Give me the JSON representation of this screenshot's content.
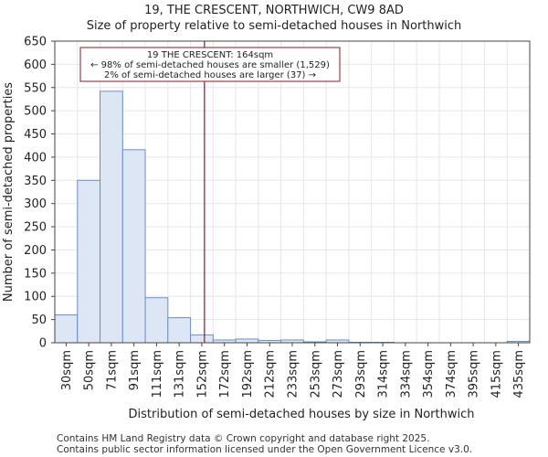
{
  "header": {
    "title": "19, THE CRESCENT, NORTHWICH, CW9 8AD",
    "subtitle": "Size of property relative to semi-detached houses in Northwich"
  },
  "footer": {
    "line1": "Contains HM Land Registry data © Crown copyright and database right 2025.",
    "line2": "Contains public sector information licensed under the Open Government Licence v3.0."
  },
  "chart_data": {
    "type": "bar",
    "title": "Size of property relative to semi-detached houses in Northwich",
    "xlabel": "Distribution of semi-detached houses by size in Northwich",
    "ylabel": "Number of semi-detached properties",
    "categories": [
      "30sqm",
      "50sqm",
      "71sqm",
      "91sqm",
      "111sqm",
      "131sqm",
      "152sqm",
      "172sqm",
      "192sqm",
      "212sqm",
      "233sqm",
      "253sqm",
      "273sqm",
      "293sqm",
      "314sqm",
      "334sqm",
      "354sqm",
      "374sqm",
      "395sqm",
      "415sqm",
      "435sqm"
    ],
    "values": [
      60,
      350,
      542,
      416,
      97,
      54,
      17,
      6,
      8,
      5,
      6,
      2,
      6,
      1,
      1,
      0,
      0,
      0,
      0,
      0,
      3
    ],
    "ylim": [
      0,
      650
    ],
    "yticks": [
      0,
      50,
      100,
      150,
      200,
      250,
      300,
      350,
      400,
      450,
      500,
      550,
      600,
      650
    ],
    "bar_color": "#dce6f4",
    "bar_edge_color": "#6a8fc8",
    "marker": {
      "value": 164,
      "color": "#8b1a1a",
      "label_lines": [
        "19 THE CRESCENT: 164sqm",
        "← 98% of semi-detached houses are smaller (1,529)",
        "2% of semi-detached houses are larger (37) →"
      ]
    }
  }
}
